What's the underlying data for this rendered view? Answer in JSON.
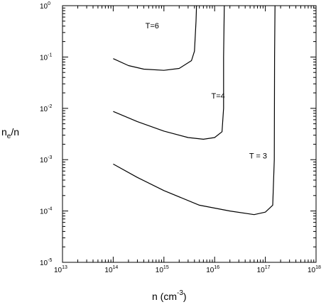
{
  "chart_data": {
    "type": "line",
    "xscale": "log",
    "yscale": "log",
    "xlim": [
      10000000000000.0,
      1e+18
    ],
    "ylim": [
      1e-05,
      1
    ],
    "xlabel": {
      "base": "n (cm",
      "sup": "-3",
      "end": ")"
    },
    "ylabel": {
      "base": "n",
      "sub": "e",
      "end": "/n"
    },
    "x_tick_labels": [
      {
        "base": "10",
        "exp": "13"
      },
      {
        "base": "10",
        "exp": "14"
      },
      {
        "base": "10",
        "exp": "15"
      },
      {
        "base": "10",
        "exp": "16"
      },
      {
        "base": "10",
        "exp": "17"
      },
      {
        "base": "10",
        "exp": "18"
      }
    ],
    "y_tick_labels": [
      {
        "base": "10",
        "exp": "-5"
      },
      {
        "base": "10",
        "exp": "-4"
      },
      {
        "base": "10",
        "exp": "-3"
      },
      {
        "base": "10",
        "exp": "-2"
      },
      {
        "base": "10",
        "exp": "-1"
      },
      {
        "base": "10",
        "exp": "0"
      }
    ],
    "grid": false,
    "legend": "none",
    "series": [
      {
        "label": "T=6",
        "points": [
          [
            100000000000000.0,
            0.093
          ],
          [
            200000000000000.0,
            0.068
          ],
          [
            400000000000000.0,
            0.058
          ],
          [
            1000000000000000.0,
            0.055
          ],
          [
            2000000000000000.0,
            0.06
          ],
          [
            3500000000000000.0,
            0.085
          ],
          [
            4000000000000000.0,
            0.13
          ],
          [
            4300000000000000.0,
            0.5
          ],
          [
            4400000000000000.0,
            1.0
          ]
        ]
      },
      {
        "label": "T=4",
        "points": [
          [
            100000000000000.0,
            0.0087
          ],
          [
            300000000000000.0,
            0.0055
          ],
          [
            1000000000000000.0,
            0.0036
          ],
          [
            3000000000000000.0,
            0.0027
          ],
          [
            6000000000000000.0,
            0.0025
          ],
          [
            1e+16,
            0.0027
          ],
          [
            1.4e+16,
            0.0035
          ],
          [
            1.5e+16,
            0.01
          ],
          [
            1.5e+16,
            0.1
          ],
          [
            1.55e+16,
            1.0
          ]
        ]
      },
      {
        "label": "T = 3",
        "points": [
          [
            100000000000000.0,
            0.00082
          ],
          [
            300000000000000.0,
            0.00045
          ],
          [
            1000000000000000.0,
            0.00025
          ],
          [
            5000000000000000.0,
            0.00013
          ],
          [
            2e+16,
            0.0001
          ],
          [
            6e+16,
            8.5e-05
          ],
          [
            1e+17,
            9.5e-05
          ],
          [
            1.4e+17,
            0.00013
          ],
          [
            1.5e+17,
            0.001
          ],
          [
            1.52e+17,
            0.1
          ],
          [
            1.55e+17,
            1.0
          ]
        ]
      }
    ],
    "curve_labels": [
      {
        "text": "T=6",
        "x": 430000000000000.0,
        "y": 0.36
      },
      {
        "text": "T=4",
        "x": 8600000000000000.0,
        "y": 0.0155
      },
      {
        "text": "T = 3",
        "x": 4.8e+16,
        "y": 0.00105
      }
    ],
    "colors": {
      "line": "#000000",
      "axis": "#000000",
      "background": "#ffffff"
    }
  }
}
